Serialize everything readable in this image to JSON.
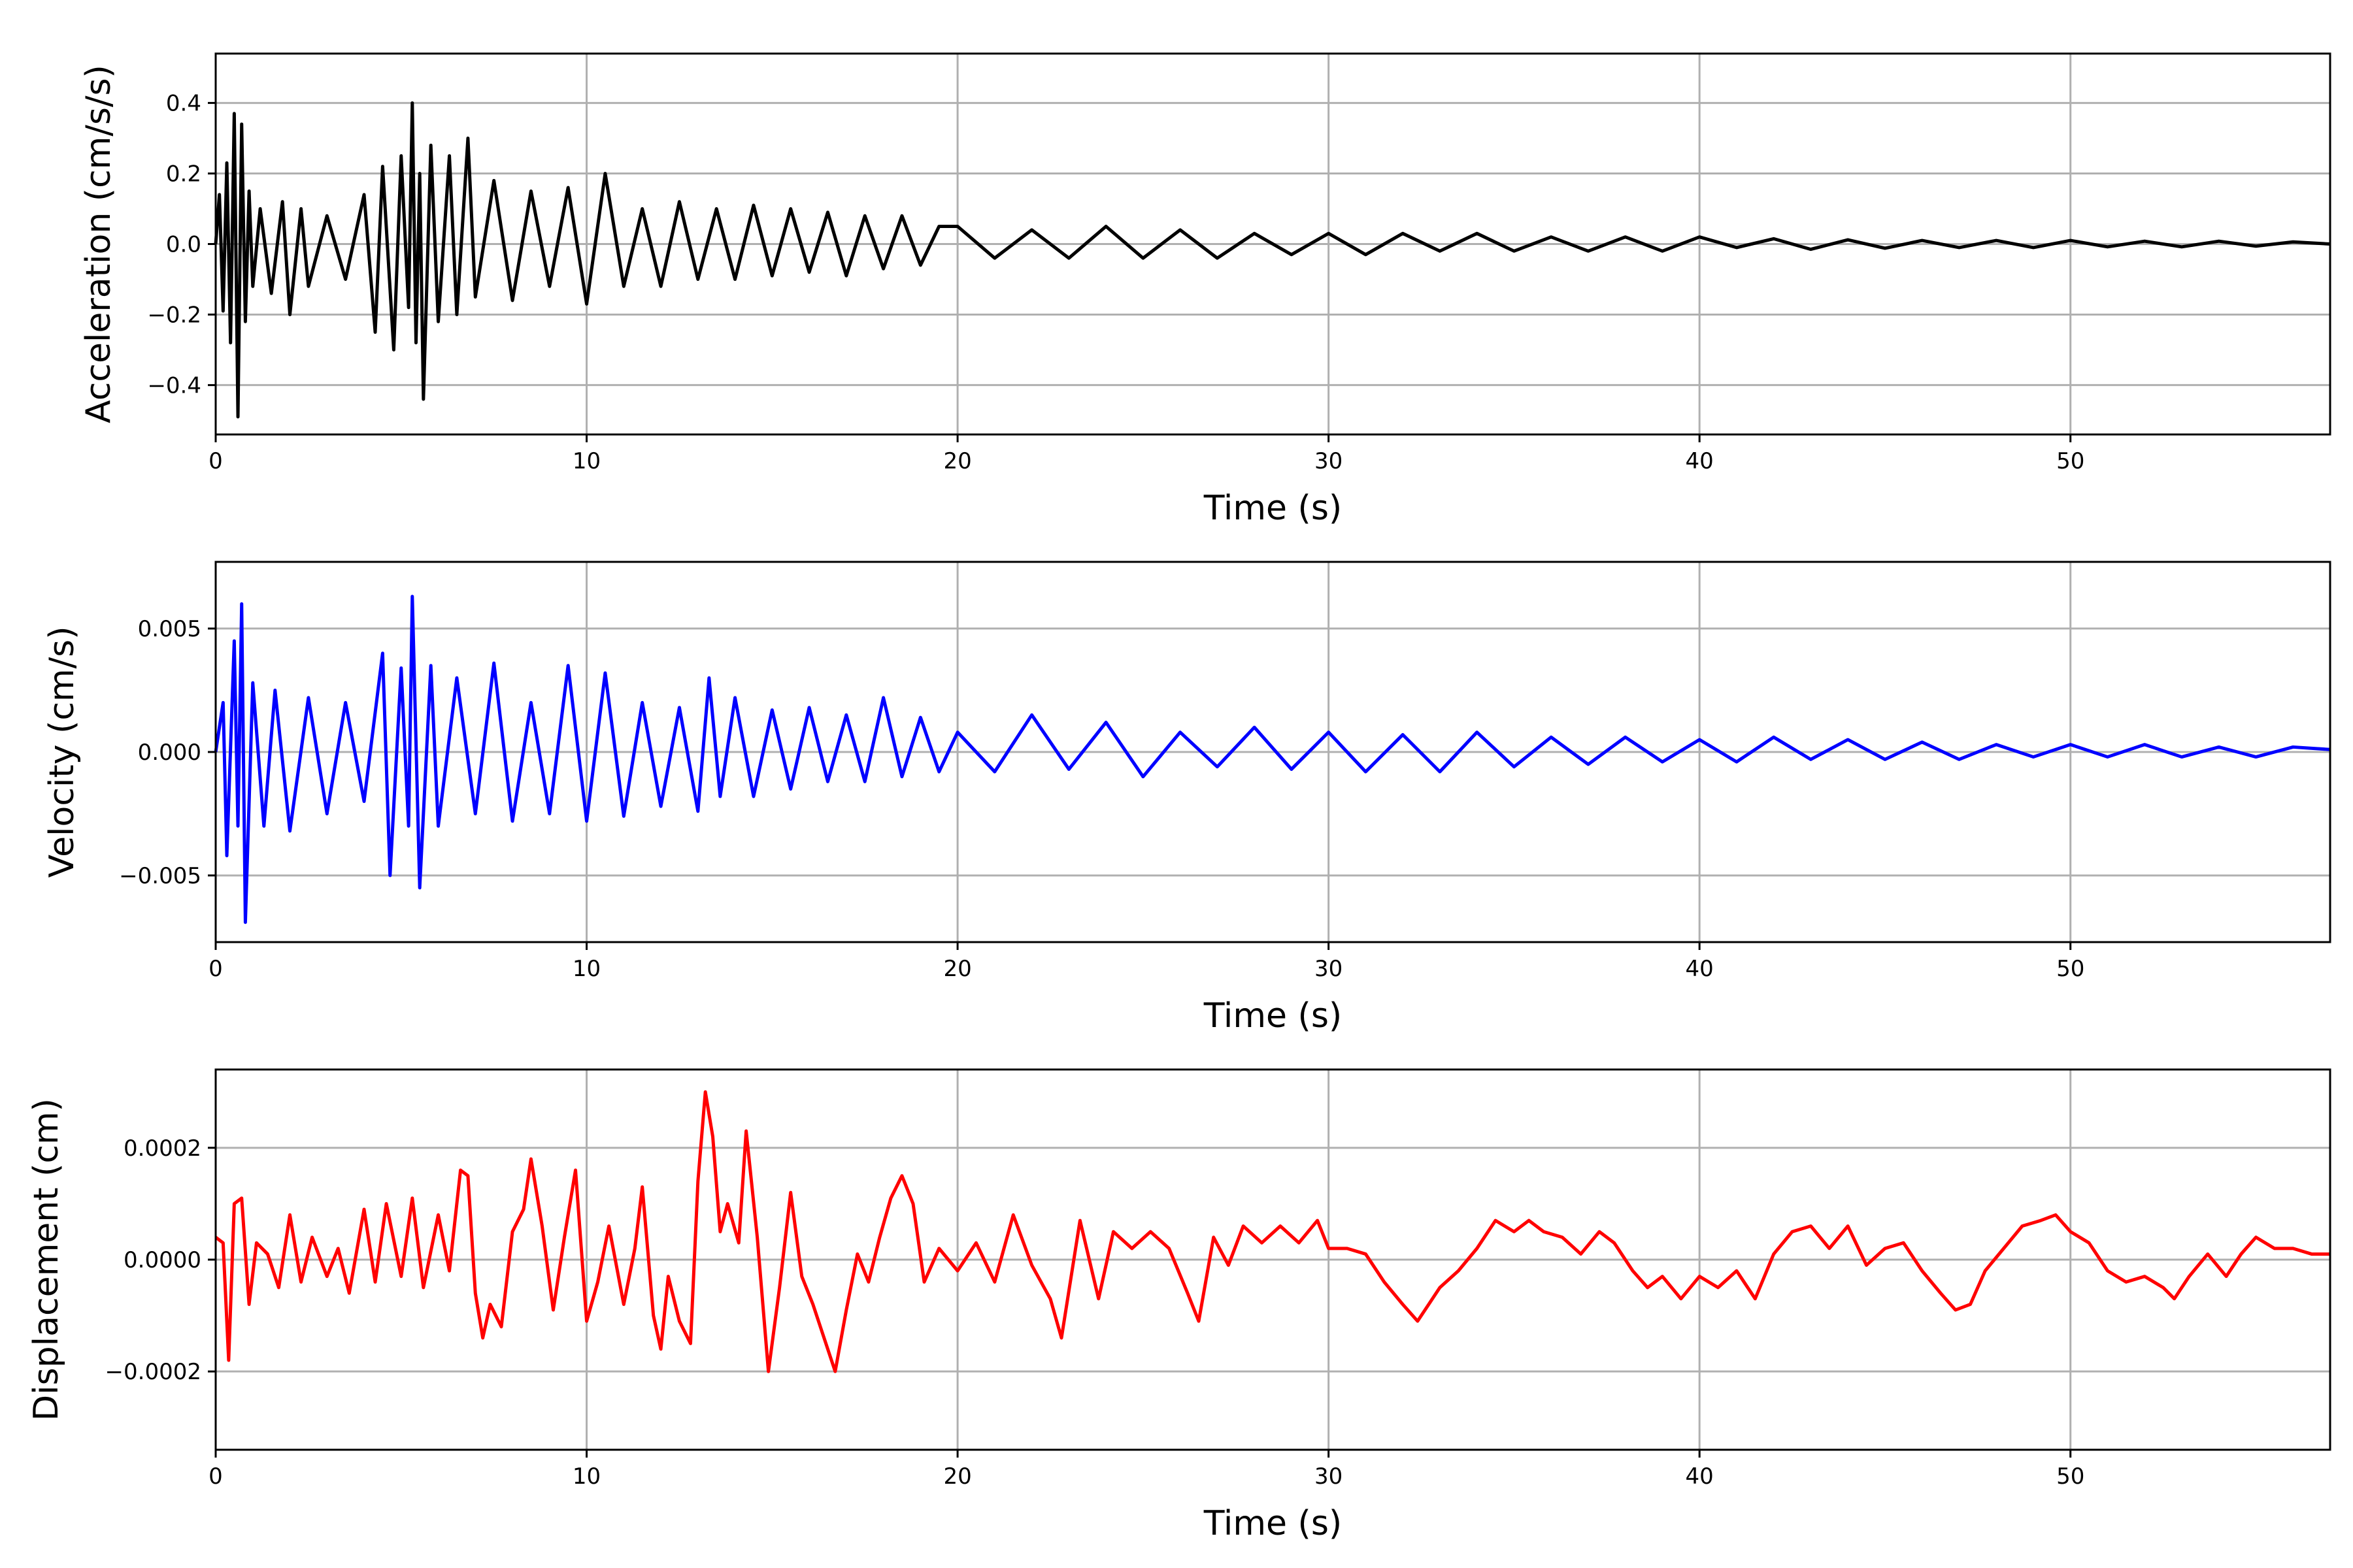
{
  "chart_data": [
    {
      "type": "line",
      "xlabel": "Time (s)",
      "ylabel": "Acceleration (cm/s/s)",
      "xlim": [
        0,
        57
      ],
      "ylim": [
        -0.54,
        0.54
      ],
      "xticks": [
        0,
        10,
        20,
        30,
        40,
        50
      ],
      "xtick_labels": [
        "0",
        "10",
        "20",
        "30",
        "40",
        "50"
      ],
      "yticks": [
        -0.4,
        -0.2,
        0.0,
        0.2,
        0.4
      ],
      "ytick_labels": [
        "−0.4",
        "−0.2",
        "0.0",
        "0.2",
        "0.4"
      ],
      "grid": true,
      "series": [
        {
          "color": "#000000",
          "x": [
            0,
            0.1,
            0.2,
            0.3,
            0.4,
            0.5,
            0.6,
            0.7,
            0.8,
            0.9,
            1.0,
            1.2,
            1.5,
            1.8,
            2.0,
            2.3,
            2.5,
            3.0,
            3.5,
            4.0,
            4.3,
            4.5,
            4.8,
            5.0,
            5.2,
            5.3,
            5.4,
            5.5,
            5.6,
            5.8,
            6.0,
            6.3,
            6.5,
            6.8,
            7.0,
            7.5,
            8.0,
            8.5,
            9.0,
            9.5,
            10.0,
            10.5,
            11.0,
            11.5,
            12.0,
            12.5,
            13.0,
            13.5,
            14.0,
            14.5,
            15.0,
            15.5,
            16.0,
            16.5,
            17.0,
            17.5,
            18.0,
            18.5,
            19.0,
            19.5,
            20,
            21,
            22,
            23,
            24,
            25,
            26,
            27,
            28,
            29,
            30,
            31,
            32,
            33,
            34,
            35,
            36,
            37,
            38,
            39,
            40,
            41,
            42,
            43,
            44,
            45,
            46,
            47,
            48,
            49,
            50,
            51,
            52,
            53,
            54,
            55,
            56,
            57
          ],
          "y": [
            0,
            0.14,
            -0.19,
            0.23,
            -0.28,
            0.37,
            -0.49,
            0.34,
            -0.22,
            0.15,
            -0.12,
            0.1,
            -0.14,
            0.12,
            -0.2,
            0.1,
            -0.12,
            0.08,
            -0.1,
            0.14,
            -0.25,
            0.22,
            -0.3,
            0.25,
            -0.18,
            0.4,
            -0.28,
            0.2,
            -0.44,
            0.28,
            -0.22,
            0.25,
            -0.2,
            0.3,
            -0.15,
            0.18,
            -0.16,
            0.15,
            -0.12,
            0.16,
            -0.17,
            0.2,
            -0.12,
            0.1,
            -0.12,
            0.12,
            -0.1,
            0.1,
            -0.1,
            0.11,
            -0.09,
            0.1,
            -0.08,
            0.09,
            -0.09,
            0.08,
            -0.07,
            0.08,
            -0.06,
            0.05,
            0.05,
            -0.04,
            0.04,
            -0.04,
            0.05,
            -0.04,
            0.04,
            -0.04,
            0.03,
            -0.03,
            0.03,
            -0.03,
            0.03,
            -0.02,
            0.03,
            -0.02,
            0.02,
            -0.02,
            0.02,
            -0.02,
            0.02,
            -0.01,
            0.015,
            -0.015,
            0.012,
            -0.012,
            0.01,
            -0.01,
            0.01,
            -0.01,
            0.01,
            -0.008,
            0.008,
            -0.008,
            0.008,
            -0.006,
            0.006,
            0.0
          ]
        }
      ]
    },
    {
      "type": "line",
      "xlabel": "Time (s)",
      "ylabel": "Velocity (cm/s)",
      "xlim": [
        0,
        57
      ],
      "ylim": [
        -0.0077,
        0.0077
      ],
      "xticks": [
        0,
        10,
        20,
        30,
        40,
        50
      ],
      "xtick_labels": [
        "0",
        "10",
        "20",
        "30",
        "40",
        "50"
      ],
      "yticks": [
        -0.005,
        0.0,
        0.005
      ],
      "ytick_labels": [
        "−0.005",
        "0.000",
        "0.005"
      ],
      "grid": true,
      "series": [
        {
          "color": "#0000ff",
          "x": [
            0,
            0.2,
            0.3,
            0.5,
            0.6,
            0.7,
            0.8,
            1.0,
            1.3,
            1.6,
            2.0,
            2.5,
            3.0,
            3.5,
            4.0,
            4.5,
            4.7,
            5.0,
            5.2,
            5.3,
            5.5,
            5.8,
            6.0,
            6.5,
            7.0,
            7.5,
            8.0,
            8.5,
            9.0,
            9.5,
            10.0,
            10.5,
            11.0,
            11.5,
            12.0,
            12.5,
            13.0,
            13.3,
            13.6,
            14.0,
            14.5,
            15.0,
            15.5,
            16.0,
            16.5,
            17.0,
            17.5,
            18.0,
            18.5,
            19.0,
            19.5,
            20,
            21,
            22,
            23,
            24,
            25,
            26,
            27,
            28,
            29,
            30,
            31,
            32,
            33,
            34,
            35,
            36,
            37,
            38,
            39,
            40,
            41,
            42,
            43,
            44,
            45,
            46,
            47,
            48,
            49,
            50,
            51,
            52,
            53,
            54,
            55,
            56,
            57
          ],
          "y": [
            0.0,
            0.002,
            -0.0042,
            0.0045,
            -0.003,
            0.006,
            -0.0069,
            0.0028,
            -0.003,
            0.0025,
            -0.0032,
            0.0022,
            -0.0025,
            0.002,
            -0.002,
            0.004,
            -0.005,
            0.0034,
            -0.003,
            0.0063,
            -0.0055,
            0.0035,
            -0.003,
            0.003,
            -0.0025,
            0.0036,
            -0.0028,
            0.002,
            -0.0025,
            0.0035,
            -0.0028,
            0.0032,
            -0.0026,
            0.002,
            -0.0022,
            0.0018,
            -0.0024,
            0.003,
            -0.0018,
            0.0022,
            -0.0018,
            0.0017,
            -0.0015,
            0.0018,
            -0.0012,
            0.0015,
            -0.0012,
            0.0022,
            -0.001,
            0.0014,
            -0.0008,
            0.0008,
            -0.0008,
            0.0015,
            -0.0007,
            0.0012,
            -0.001,
            0.0008,
            -0.0006,
            0.001,
            -0.0007,
            0.0008,
            -0.0008,
            0.0007,
            -0.0008,
            0.0008,
            -0.0006,
            0.0006,
            -0.0005,
            0.0006,
            -0.0004,
            0.0005,
            -0.0004,
            0.0006,
            -0.0003,
            0.0005,
            -0.0003,
            0.0004,
            -0.0003,
            0.0003,
            -0.0002,
            0.0003,
            -0.0002,
            0.0003,
            -0.0002,
            0.0002,
            -0.0002,
            0.0002,
            0.0001
          ]
        }
      ]
    },
    {
      "type": "line",
      "xlabel": "Time (s)",
      "ylabel": "Displacement (cm)",
      "xlim": [
        0,
        57
      ],
      "ylim": [
        -0.00034,
        0.00034
      ],
      "xticks": [
        0,
        10,
        20,
        30,
        40,
        50
      ],
      "xtick_labels": [
        "0",
        "10",
        "20",
        "30",
        "40",
        "50"
      ],
      "yticks": [
        -0.0002,
        0.0,
        0.0002
      ],
      "ytick_labels": [
        "−0.0002",
        "0.0000",
        "0.0002"
      ],
      "grid": true,
      "series": [
        {
          "color": "#ff0000",
          "x": [
            0,
            0.2,
            0.35,
            0.5,
            0.7,
            0.9,
            1.1,
            1.4,
            1.7,
            2.0,
            2.3,
            2.6,
            3.0,
            3.3,
            3.6,
            4.0,
            4.3,
            4.6,
            5.0,
            5.3,
            5.6,
            6.0,
            6.3,
            6.6,
            6.8,
            7.0,
            7.2,
            7.4,
            7.7,
            8.0,
            8.3,
            8.5,
            8.8,
            9.1,
            9.4,
            9.7,
            10.0,
            10.3,
            10.6,
            11.0,
            11.3,
            11.5,
            11.8,
            12.0,
            12.2,
            12.5,
            12.8,
            13.0,
            13.2,
            13.4,
            13.6,
            13.8,
            14.1,
            14.3,
            14.6,
            14.9,
            15.2,
            15.5,
            15.8,
            16.1,
            16.4,
            16.7,
            17.0,
            17.3,
            17.6,
            17.9,
            18.2,
            18.5,
            18.8,
            19.1,
            19.5,
            20.0,
            20.5,
            21.0,
            21.5,
            22.0,
            22.5,
            22.8,
            23.3,
            23.8,
            24.2,
            24.7,
            25.2,
            25.7,
            26.2,
            26.5,
            26.9,
            27.3,
            27.7,
            28.2,
            28.7,
            29.2,
            29.7,
            30.0,
            30.5,
            31.0,
            31.5,
            32.0,
            32.4,
            32.7,
            33.0,
            33.5,
            34.0,
            34.5,
            35.0,
            35.4,
            35.8,
            36.3,
            36.8,
            37.3,
            37.7,
            38.2,
            38.6,
            39.0,
            39.5,
            40.0,
            40.5,
            41.0,
            41.5,
            42.0,
            42.5,
            43.0,
            43.5,
            44.0,
            44.5,
            45.0,
            45.5,
            46.0,
            46.5,
            46.9,
            47.3,
            47.7,
            48.2,
            48.7,
            49.2,
            49.6,
            50.0,
            50.5,
            51.0,
            51.5,
            52.0,
            52.5,
            52.8,
            53.2,
            53.7,
            54.2,
            54.6,
            55.0,
            55.5,
            56.0,
            56.5,
            57.0
          ],
          "y": [
            4e-05,
            3e-05,
            -0.00018,
            0.0001,
            0.00011,
            -8e-05,
            3e-05,
            1e-05,
            -5e-05,
            8e-05,
            -4e-05,
            4e-05,
            -3e-05,
            2e-05,
            -6e-05,
            9e-05,
            -4e-05,
            0.0001,
            -3e-05,
            0.00011,
            -5e-05,
            8e-05,
            -2e-05,
            0.00016,
            0.00015,
            -6e-05,
            -0.00014,
            -8e-05,
            -0.00012,
            5e-05,
            9e-05,
            0.00018,
            6e-05,
            -9e-05,
            4e-05,
            0.00016,
            -0.00011,
            -4e-05,
            6e-05,
            -8e-05,
            2e-05,
            0.00013,
            -0.0001,
            -0.00016,
            -3e-05,
            -0.00011,
            -0.00015,
            0.00014,
            0.0003,
            0.00022,
            5e-05,
            0.0001,
            3e-05,
            0.00023,
            4e-05,
            -0.0002,
            -5e-05,
            0.00012,
            -3e-05,
            -8e-05,
            -0.00014,
            -0.0002,
            -9e-05,
            1e-05,
            -4e-05,
            4e-05,
            0.00011,
            0.00015,
            0.0001,
            -4e-05,
            2e-05,
            -2e-05,
            3e-05,
            -4e-05,
            8e-05,
            -1e-05,
            -7e-05,
            -0.00014,
            7e-05,
            -7e-05,
            5e-05,
            2e-05,
            5e-05,
            2e-05,
            -6e-05,
            -0.00011,
            4e-05,
            -1e-05,
            6e-05,
            3e-05,
            6e-05,
            3e-05,
            7e-05,
            2e-05,
            2e-05,
            1e-05,
            -4e-05,
            -8e-05,
            -0.00011,
            -8e-05,
            -5e-05,
            -2e-05,
            2e-05,
            7e-05,
            5e-05,
            7e-05,
            5e-05,
            4e-05,
            1e-05,
            5e-05,
            3e-05,
            -2e-05,
            -5e-05,
            -3e-05,
            -7e-05,
            -3e-05,
            -5e-05,
            -2e-05,
            -7e-05,
            1e-05,
            5e-05,
            6e-05,
            2e-05,
            6e-05,
            -1e-05,
            2e-05,
            3e-05,
            -2e-05,
            -6e-05,
            -9e-05,
            -8e-05,
            -2e-05,
            2e-05,
            6e-05,
            7e-05,
            8e-05,
            5e-05,
            3e-05,
            -2e-05,
            -4e-05,
            -3e-05,
            -5e-05,
            -7e-05,
            -3e-05,
            1e-05,
            -3e-05,
            1e-05,
            4e-05,
            2e-05,
            2e-05,
            1e-05,
            1e-05
          ]
        }
      ]
    }
  ]
}
